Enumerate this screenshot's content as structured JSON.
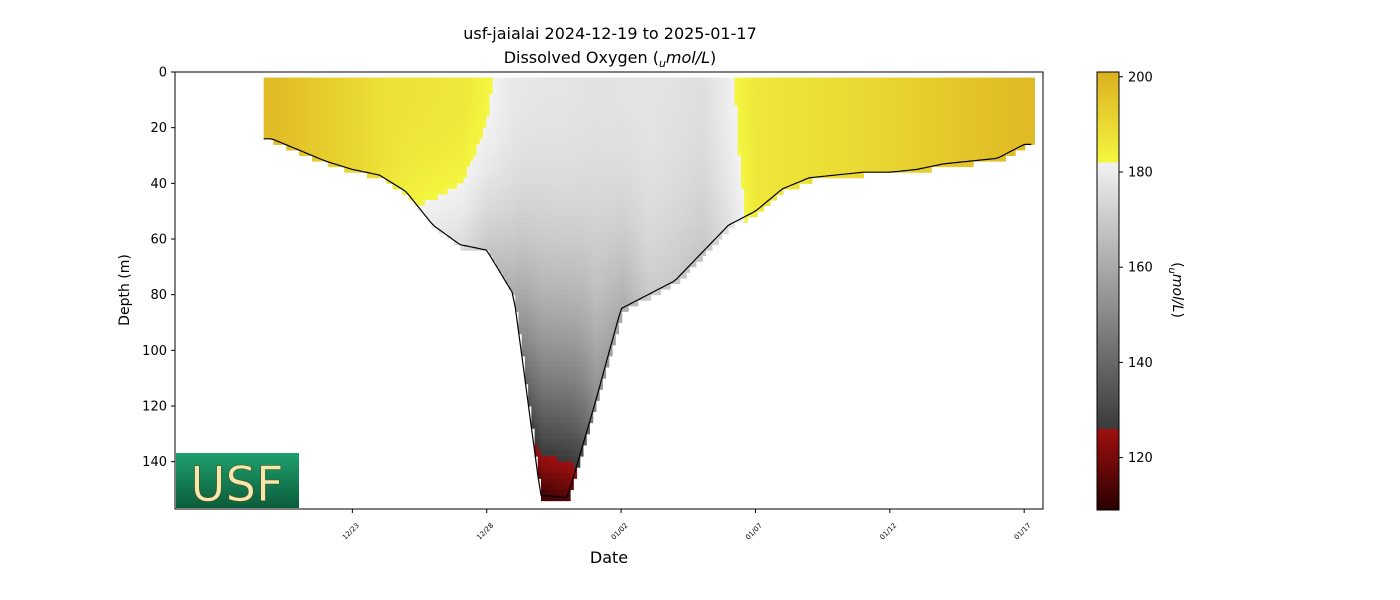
{
  "header": {
    "title_line1": "usf-jaialai 2024-12-19 to 2025-01-17",
    "title_line2_prefix": "Dissolved Oxygen (",
    "title_line2_sub": "u",
    "title_line2_unit": "mol/L",
    "title_line2_suffix": ")"
  },
  "logo": {
    "text": "USF",
    "colors": {
      "background": "#0b6b45",
      "text": "#f3e9b0"
    }
  },
  "colorbar": {
    "label_sub": "u",
    "label_unit": "mol/L",
    "range": [
      109,
      201
    ],
    "ticks": [
      "120",
      "140",
      "160",
      "180",
      "200"
    ],
    "tick_values": [
      120,
      140,
      160,
      180,
      200
    ],
    "colors": {
      "low": "#2a0000",
      "red": "#a01010",
      "dark_gray": "#3a3a3a",
      "light_gray": "#f2f2f2",
      "yellow": "#f4f640",
      "gold": "#dcb021"
    }
  },
  "chart_data": {
    "type": "heatmap",
    "title": "usf-jaialai 2024-12-19 to 2025-01-17",
    "subtitle": "Dissolved Oxygen (umol/L)",
    "xlabel": "Date",
    "ylabel": "Depth (m)",
    "x_range": [
      "2024-12-19",
      "2025-01-17"
    ],
    "ylim": [
      157,
      0
    ],
    "y_ticks": [
      0,
      20,
      40,
      60,
      80,
      100,
      120,
      140
    ],
    "y_tick_labels": [
      "0",
      "20",
      "40",
      "60",
      "80",
      "100",
      "120",
      "140"
    ],
    "x_ticks": [
      "2024-12-23",
      "2024-12-28",
      "2025-01-02",
      "2025-01-07",
      "2025-01-12",
      "2025-01-17"
    ],
    "x_tick_labels": [
      "12/23",
      "12/28",
      "01/02",
      "01/07",
      "01/12",
      "01/17"
    ],
    "colorbar_label": "umol/L",
    "grid": false,
    "profile_bottom": {
      "dates": [
        "2024-12-20",
        "2024-12-21",
        "2024-12-22",
        "2024-12-23",
        "2024-12-24",
        "2024-12-25",
        "2024-12-26",
        "2024-12-27",
        "2024-12-28",
        "2024-12-29",
        "2024-12-30",
        "2024-12-31",
        "2025-01-01",
        "2025-01-02",
        "2025-01-03",
        "2025-01-04",
        "2025-01-05",
        "2025-01-06",
        "2025-01-07",
        "2025-01-08",
        "2025-01-09",
        "2025-01-10",
        "2025-01-11",
        "2025-01-12",
        "2025-01-13",
        "2025-01-14",
        "2025-01-15",
        "2025-01-16",
        "2025-01-17"
      ],
      "depth_m": [
        24,
        28,
        32,
        35,
        37,
        43,
        55,
        62,
        64,
        80,
        152,
        153,
        120,
        85,
        80,
        75,
        65,
        55,
        50,
        42,
        38,
        37,
        36,
        36,
        35,
        33,
        32,
        31,
        26
      ]
    },
    "oxygen_by_date": {
      "dates": [
        "2024-12-20",
        "2024-12-24",
        "2024-12-27",
        "2024-12-29",
        "2024-12-30",
        "2024-12-31",
        "2025-01-01",
        "2025-01-03",
        "2025-01-05",
        "2025-01-07",
        "2025-01-11",
        "2025-01-16",
        "2025-01-17"
      ],
      "surface_umol_L": [
        198,
        188,
        186,
        179,
        178,
        178,
        177,
        178,
        176,
        186,
        190,
        197,
        198
      ],
      "bottom_umol_L": [
        198,
        188,
        175,
        160,
        112,
        114,
        150,
        170,
        168,
        186,
        190,
        197,
        198
      ]
    }
  }
}
